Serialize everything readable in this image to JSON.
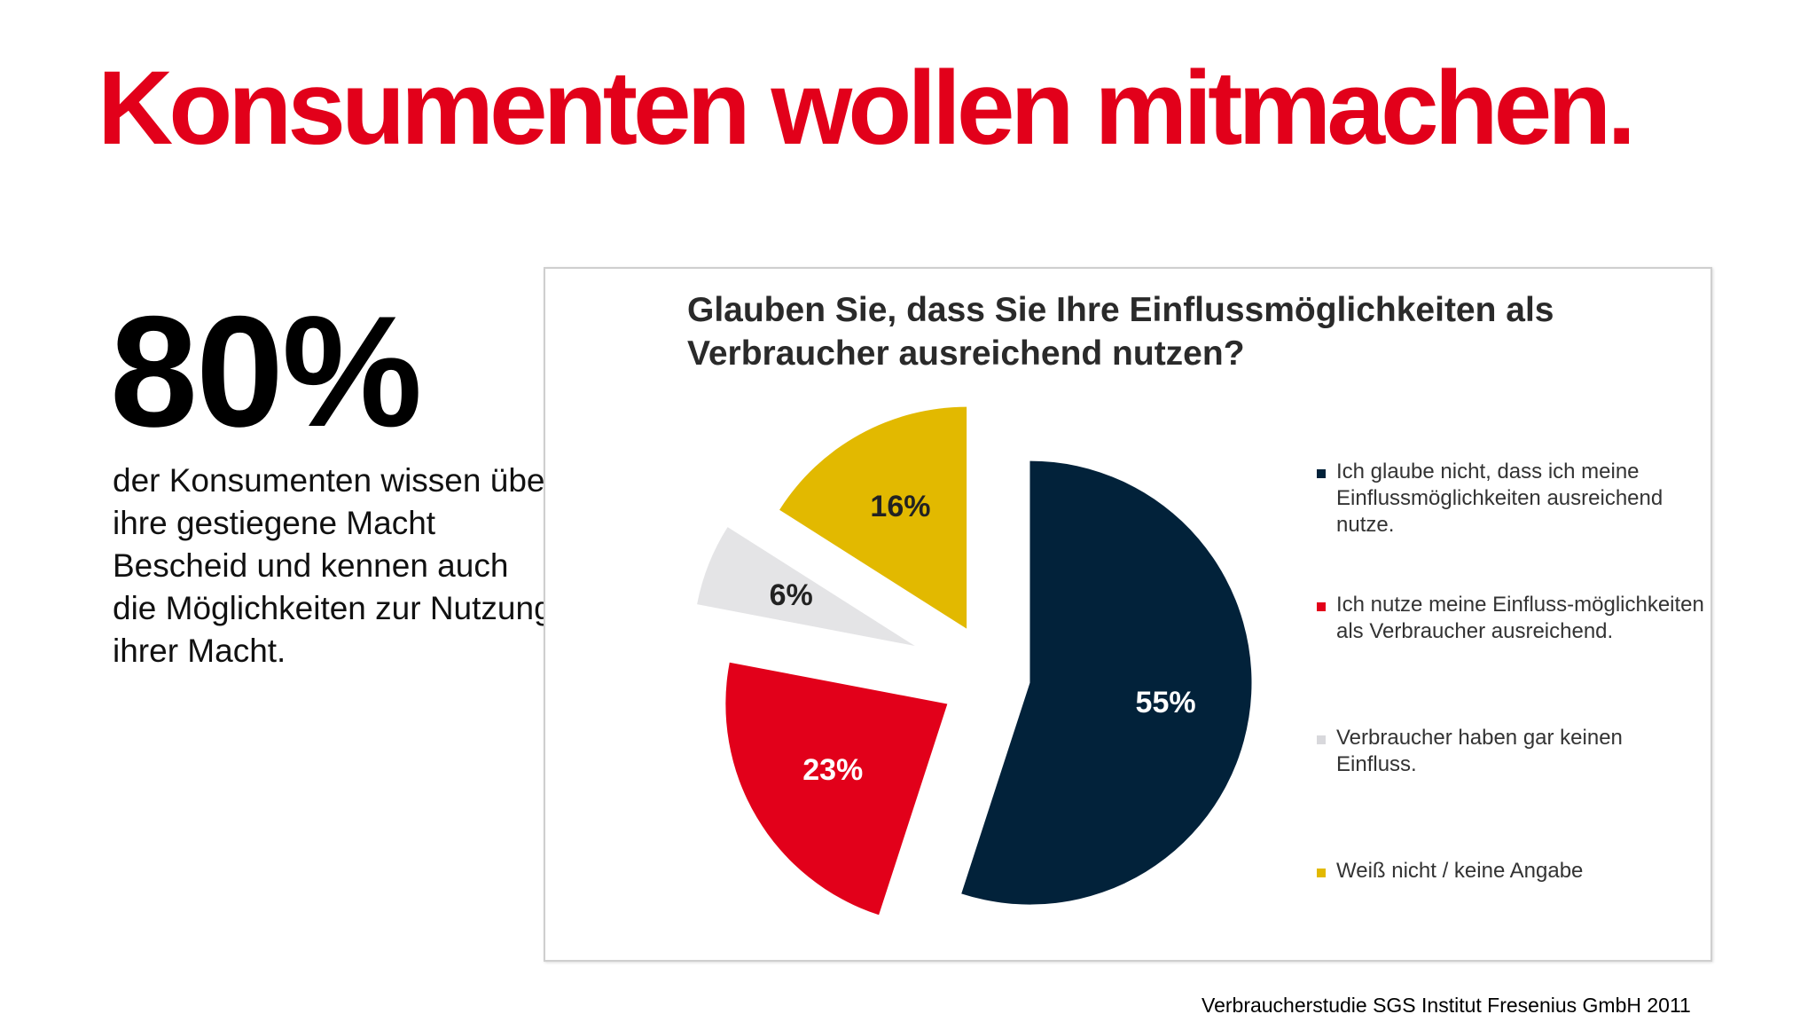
{
  "slide": {
    "title": "Konsumenten wollen mitmachen.",
    "big_stat": "80%",
    "stat_text": "der Konsumenten wissen über ihre gestiegene Macht Bescheid und kennen auch die Möglichkeiten zur Nutzung ihrer Macht.",
    "source": "Verbraucherstudie SGS Institut Fresenius GmbH 2011"
  },
  "chart_data": {
    "type": "pie",
    "title": "Glauben Sie, dass Sie Ihre Einflussmöglichkeiten als Verbraucher ausreichend nutzen?",
    "slices": [
      {
        "label": "Ich glaube nicht, dass ich meine Einflussmöglichkeiten ausreichend nutze.",
        "value": 55,
        "value_label": "55%",
        "color": "#02223a",
        "label_color": "#ffffff"
      },
      {
        "label": "Ich nutze meine Einfluss-möglichkeiten als Verbraucher ausreichend.",
        "value": 23,
        "value_label": "23%",
        "color": "#e2001a",
        "label_color": "#ffffff"
      },
      {
        "label": "Verbraucher haben gar keinen Einfluss.",
        "value": 6,
        "value_label": "6%",
        "color": "#e4e4e6",
        "label_color": "#222222"
      },
      {
        "label": "Weiß nicht / keine Angabe",
        "value": 16,
        "value_label": "16%",
        "color": "#e2b900",
        "label_color": "#222222"
      }
    ],
    "legend_placement": "right",
    "exploded": true
  }
}
